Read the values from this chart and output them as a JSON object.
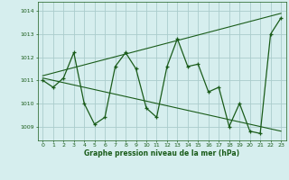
{
  "x": [
    0,
    1,
    2,
    3,
    4,
    5,
    6,
    7,
    8,
    9,
    10,
    11,
    12,
    13,
    14,
    15,
    16,
    17,
    18,
    19,
    20,
    21,
    22,
    23
  ],
  "y": [
    1011.0,
    1010.7,
    1011.1,
    1012.2,
    1010.0,
    1009.1,
    1009.4,
    1011.6,
    1012.2,
    1011.5,
    1009.8,
    1009.4,
    1011.6,
    1012.8,
    1011.6,
    1011.7,
    1010.5,
    1010.7,
    1009.0,
    1010.0,
    1008.8,
    1008.7,
    1013.0,
    1013.7
  ],
  "trend_x": [
    0,
    23
  ],
  "trend_y": [
    1011.2,
    1013.9
  ],
  "trend2_x": [
    0,
    23
  ],
  "trend2_y": [
    1011.1,
    1008.8
  ],
  "bg_color": "#d6eeee",
  "grid_color": "#aacccc",
  "line_color": "#1a5c1a",
  "ylabel_values": [
    1009,
    1010,
    1011,
    1012,
    1013,
    1014
  ],
  "xlabel": "Graphe pression niveau de la mer (hPa)",
  "ylim": [
    1008.4,
    1014.4
  ],
  "xlim": [
    -0.5,
    23.5
  ]
}
